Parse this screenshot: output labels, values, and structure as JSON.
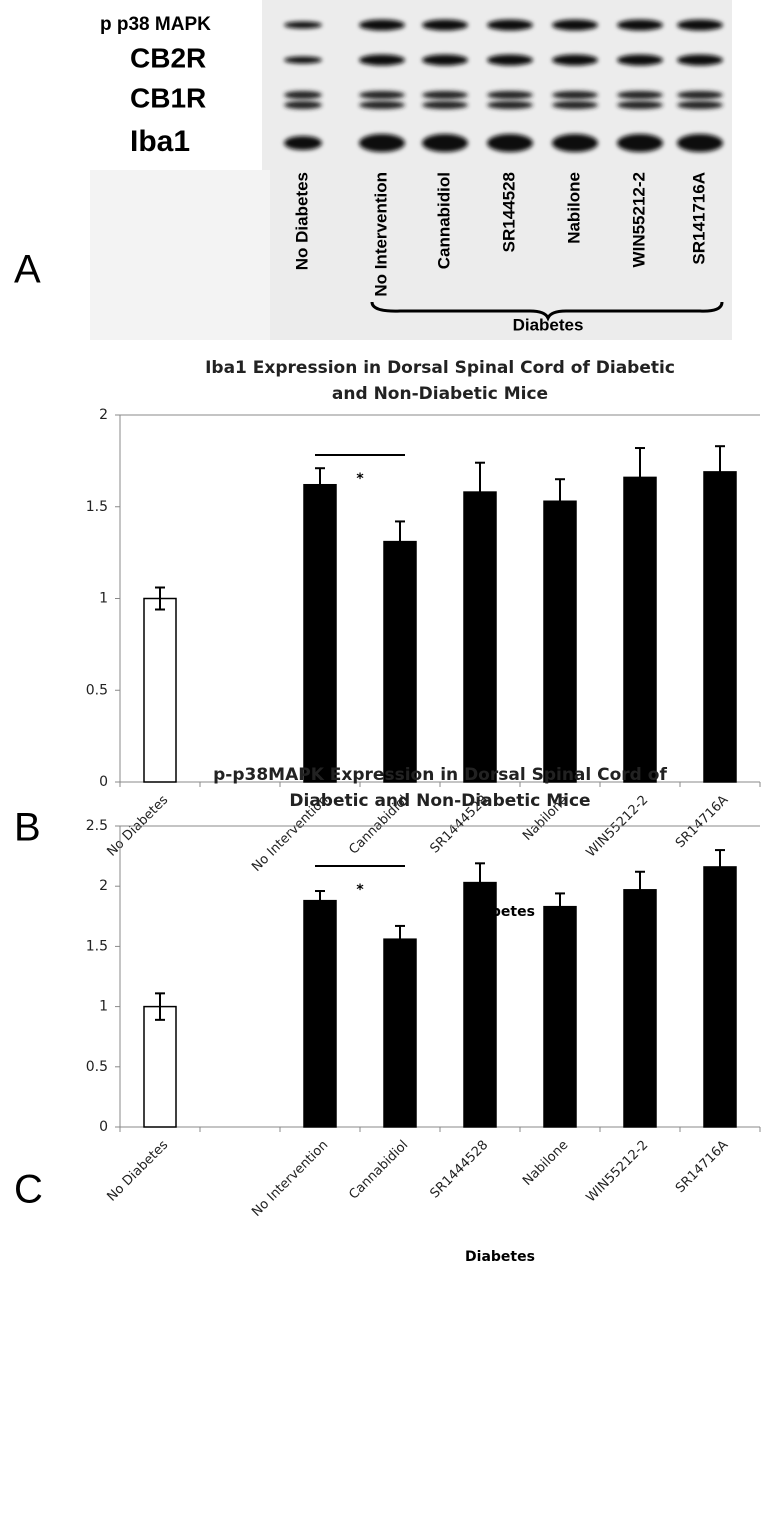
{
  "panels": {
    "a": "A",
    "b": "B",
    "c": "C"
  },
  "blot": {
    "rows": [
      "p p38 MAPK",
      "CB2R",
      "CB1R",
      "Iba1"
    ],
    "lanes": [
      "No Diabetes",
      "No Intervention",
      "Cannabidiol",
      "SR144528",
      "Nabilone",
      "WIN55212-2",
      "SR141716A"
    ],
    "group": "Diabetes"
  },
  "chart_data": [
    {
      "type": "bar",
      "title": [
        "Iba1 Expression in Dorsal Spinal Cord of Diabetic",
        "and Non-Diabetic Mice"
      ],
      "categories": [
        "No Diabetes",
        null,
        "No Intervention",
        "Cannabidiol",
        "SR1444528",
        "Nabilone",
        "WIN55212-2",
        "SR14716A"
      ],
      "values": [
        1.0,
        null,
        1.62,
        1.31,
        1.58,
        1.53,
        1.66,
        1.69
      ],
      "errors": [
        0.06,
        null,
        0.09,
        0.11,
        0.16,
        0.12,
        0.16,
        0.14
      ],
      "colors": [
        "#ffffff",
        null,
        "#000000",
        "#000000",
        "#000000",
        "#000000",
        "#000000",
        "#000000"
      ],
      "xlabel": "Diabetes",
      "annotation": "*",
      "ylim": [
        0,
        2
      ],
      "yticks": [
        0,
        0.5,
        1,
        1.5,
        2
      ]
    },
    {
      "type": "bar",
      "title": [
        "p-p38MAPK Expression in Dorsal Spinal Cord of",
        "Diabetic and Non-Diabetic Mice"
      ],
      "categories": [
        "No Diabetes",
        null,
        "No Intervention",
        "Cannabidiol",
        "SR1444528",
        "Nabilone",
        "WIN55212-2",
        "SR14716A"
      ],
      "values": [
        1.0,
        null,
        1.88,
        1.56,
        2.03,
        1.83,
        1.97,
        2.16
      ],
      "errors": [
        0.11,
        null,
        0.08,
        0.11,
        0.16,
        0.11,
        0.15,
        0.14
      ],
      "colors": [
        "#ffffff",
        null,
        "#000000",
        "#000000",
        "#000000",
        "#000000",
        "#000000",
        "#000000"
      ],
      "xlabel": "Diabetes",
      "annotation": "*",
      "ylim": [
        0,
        2.5
      ],
      "yticks": [
        0,
        0.5,
        1,
        1.5,
        2,
        2.5
      ]
    }
  ]
}
